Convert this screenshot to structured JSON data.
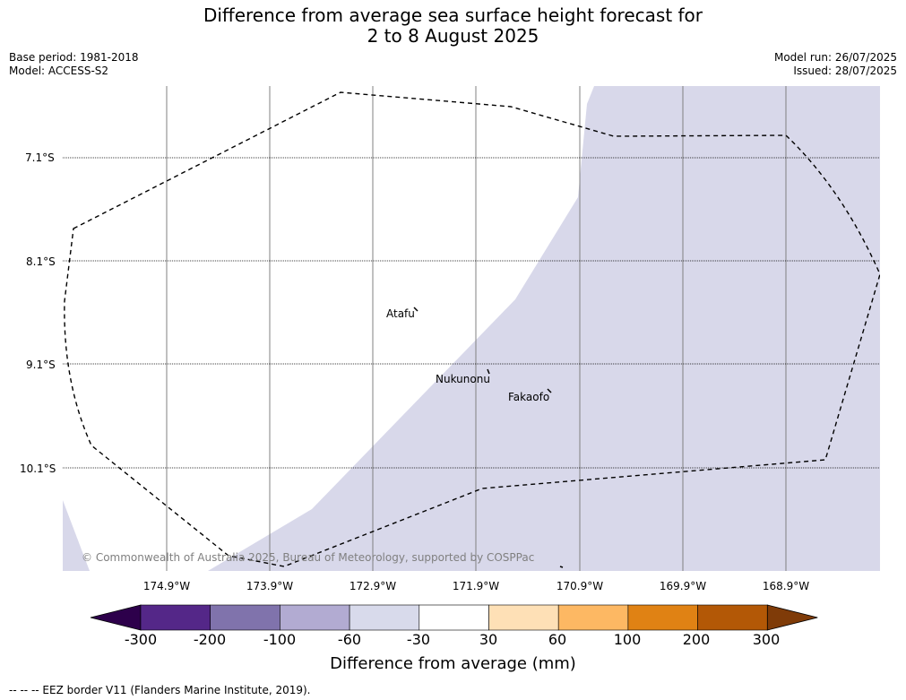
{
  "title": {
    "line1": "Difference from average sea surface height forecast for",
    "line2": "2 to 8 August 2025"
  },
  "meta": {
    "base_period": "Base period: 1981-2018",
    "model": "Model: ACCESS-S2",
    "model_run": "Model run: 26/07/2025",
    "issued": "Issued: 28/07/2025"
  },
  "map": {
    "lat_labels": [
      "7.1°S",
      "8.1°S",
      "9.1°S",
      "10.1°S"
    ],
    "lon_labels": [
      "174.9°W",
      "173.9°W",
      "172.9°W",
      "171.9°W",
      "170.9°W",
      "169.9°W",
      "168.9°W"
    ],
    "places": [
      "Atafu",
      "Nukunonu",
      "Fakaofo"
    ],
    "copyright": "© Commonwealth of Australia 2025, Bureau of Meteorology, supported by COSPPac",
    "colors": {
      "shading": "#d8d8ea",
      "eez_border": "#000000",
      "gridline": "#808080"
    }
  },
  "colorbar": {
    "tick_labels": [
      "-300",
      "-200",
      "-100",
      "-60",
      "-30",
      "30",
      "60",
      "100",
      "200",
      "300"
    ],
    "colors": [
      "#2d004b",
      "#542788",
      "#8073ac",
      "#b2abd2",
      "#d8daeb",
      "#ffffff",
      "#fee0b6",
      "#fdb863",
      "#e08214",
      "#b35806",
      "#7f3b08"
    ],
    "label": "Difference from average (mm)"
  },
  "footnote": "--  --  -- EEZ border V11 (Flanders Marine Institute, 2019)."
}
